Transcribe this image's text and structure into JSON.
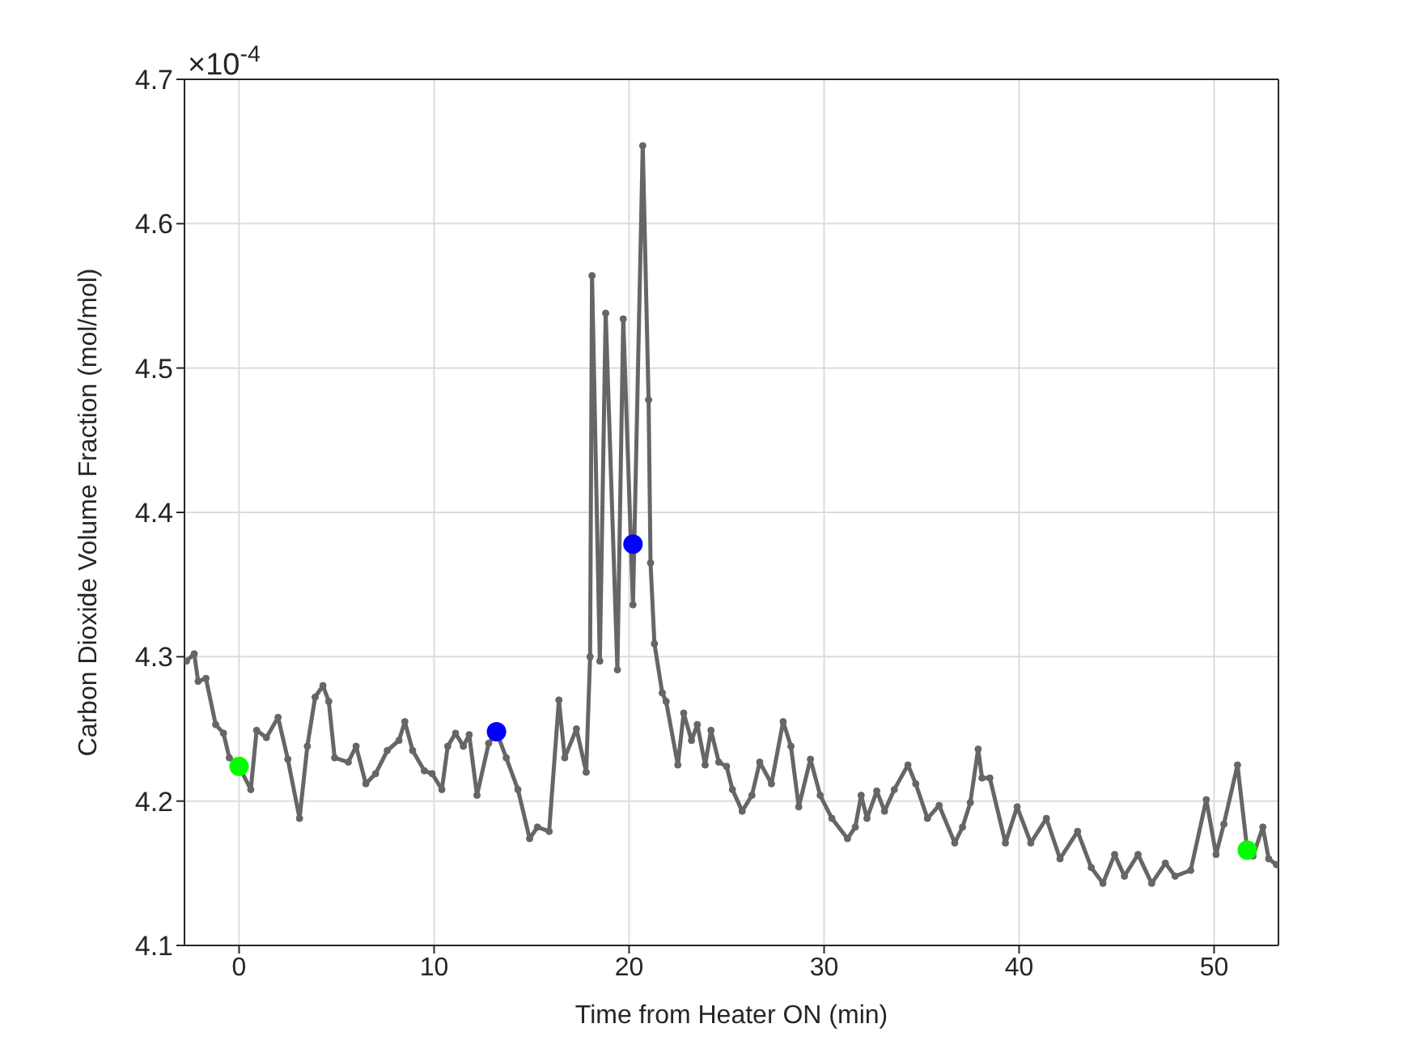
{
  "chart_data": {
    "type": "line",
    "xlabel": "Time from Heater ON (min)",
    "ylabel": "Carbon Dioxide Volume Fraction (mol/mol)",
    "annotations": [
      "×10$^{-4}$"
    ],
    "xlim": [
      -2.8,
      53.3
    ],
    "xticks": [
      0,
      10,
      20,
      30,
      40,
      50
    ],
    "ylim": [
      4.1,
      4.7
    ],
    "yticks": [
      4.1,
      4.2,
      4.3,
      4.4,
      4.5,
      4.6,
      4.7
    ],
    "grid": true,
    "legend": false,
    "marker": "circle",
    "line_style": "solid",
    "series": [
      {
        "color": "#666666",
        "x": [
          -2.7,
          -2.3,
          -2.1,
          -1.7,
          -1.2,
          -0.8,
          -0.5,
          0,
          0.6,
          0.9,
          1.4,
          2.0,
          2.5,
          3.1,
          3.5,
          3.9,
          4.3,
          4.6,
          4.9,
          5.6,
          6.0,
          6.5,
          7.0,
          7.6,
          8.2,
          8.5,
          8.9,
          9.5,
          9.9,
          10.4,
          10.7,
          11.1,
          11.5,
          11.8,
          12.2,
          12.8,
          13.2,
          13.7,
          14.3,
          14.9,
          15.3,
          15.9,
          16.4,
          16.7,
          17.3,
          17.8,
          18.0,
          18.1,
          18.5,
          18.8,
          19.4,
          19.7,
          20.2,
          20.7,
          21.0,
          21.1,
          21.3,
          21.7,
          21.9,
          22.5,
          22.8,
          23.2,
          23.5,
          23.9,
          24.2,
          24.6,
          25.0,
          25.3,
          25.8,
          26.3,
          26.7,
          27.3,
          27.9,
          28.3,
          28.7,
          29.3,
          29.8,
          30.4,
          31.2,
          31.6,
          31.9,
          32.2,
          32.7,
          33.1,
          33.6,
          34.3,
          34.7,
          35.3,
          35.9,
          36.7,
          37.1,
          37.5,
          37.9,
          38.1,
          38.5,
          39.3,
          39.9,
          40.6,
          41.4,
          42.1,
          43.0,
          43.7,
          44.3,
          44.9,
          45.4,
          46.1,
          46.8,
          47.5,
          48.0,
          48.8,
          49.6,
          50.1,
          50.5,
          51.2,
          51.7,
          52.0,
          52.5,
          52.8,
          53.2
        ],
        "values": [
          4.297,
          4.302,
          4.283,
          4.285,
          4.253,
          4.247,
          4.23,
          4.224,
          4.208,
          4.249,
          4.244,
          4.258,
          4.229,
          4.188,
          4.238,
          4.272,
          4.28,
          4.269,
          4.23,
          4.227,
          4.238,
          4.212,
          4.219,
          4.235,
          4.242,
          4.255,
          4.235,
          4.221,
          4.219,
          4.208,
          4.238,
          4.247,
          4.238,
          4.246,
          4.204,
          4.24,
          4.248,
          4.23,
          4.208,
          4.174,
          4.182,
          4.179,
          4.27,
          4.23,
          4.25,
          4.22,
          4.3,
          4.564,
          4.297,
          4.538,
          4.291,
          4.534,
          4.336,
          4.654,
          4.478,
          4.365,
          4.309,
          4.275,
          4.269,
          4.225,
          4.261,
          4.242,
          4.253,
          4.225,
          4.249,
          4.227,
          4.224,
          4.208,
          4.193,
          4.204,
          4.227,
          4.212,
          4.255,
          4.238,
          4.196,
          4.229,
          4.204,
          4.188,
          4.174,
          4.182,
          4.204,
          4.188,
          4.207,
          4.193,
          4.208,
          4.225,
          4.212,
          4.188,
          4.197,
          4.171,
          4.182,
          4.199,
          4.236,
          4.216,
          4.216,
          4.171,
          4.196,
          4.171,
          4.188,
          4.16,
          4.179,
          4.154,
          4.143,
          4.163,
          4.148,
          4.163,
          4.143,
          4.157,
          4.148,
          4.152,
          4.201,
          4.163,
          4.184,
          4.225,
          4.166,
          4.162,
          4.182,
          4.16,
          4.156
        ]
      },
      {
        "type": "scatter",
        "color": "#00ff00",
        "x": [
          0,
          51.7
        ],
        "values": [
          4.224,
          4.166
        ]
      },
      {
        "type": "scatter",
        "color": "#0000ff",
        "x": [
          13.2,
          20.2
        ],
        "values": [
          4.248,
          4.378
        ]
      }
    ]
  }
}
